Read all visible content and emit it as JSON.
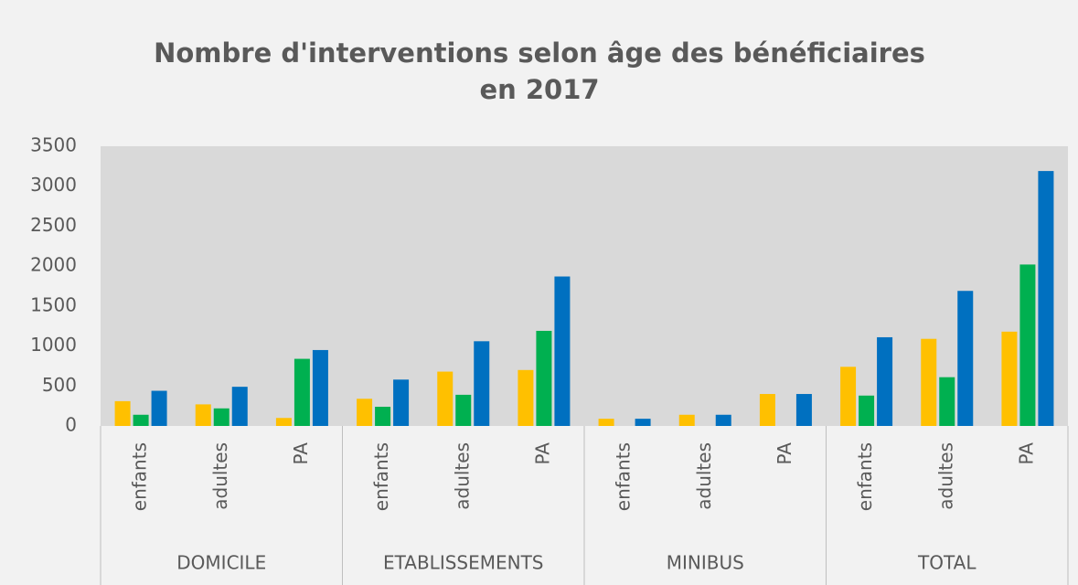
{
  "chart_data": {
    "type": "bar",
    "title": [
      "Nombre d'interventions selon âge des bénéficiaires",
      "en 2017"
    ],
    "groups": [
      "DOMICILE",
      "ETABLISSEMENTS",
      "MINIBUS",
      "TOTAL"
    ],
    "categories": [
      "enfants",
      "adultes",
      "PA",
      "enfants",
      "adultes",
      "PA",
      "enfants",
      "adultes",
      "PA",
      "enfants",
      "adultes",
      "PA"
    ],
    "series": [
      {
        "color": "#ffc000",
        "values": [
          310,
          270,
          100,
          340,
          680,
          700,
          90,
          140,
          400,
          740,
          1090,
          1180
        ]
      },
      {
        "color": "#00b050",
        "values": [
          140,
          220,
          840,
          240,
          390,
          1190,
          0,
          0,
          0,
          380,
          610,
          2020
        ]
      },
      {
        "color": "#0070c0",
        "values": [
          440,
          490,
          950,
          580,
          1060,
          1870,
          90,
          140,
          400,
          1110,
          1690,
          3190
        ]
      }
    ],
    "ylim": [
      0,
      3500
    ],
    "yticks": [
      0,
      500,
      1000,
      1500,
      2000,
      2500,
      3000,
      3500
    ],
    "grid": false
  }
}
